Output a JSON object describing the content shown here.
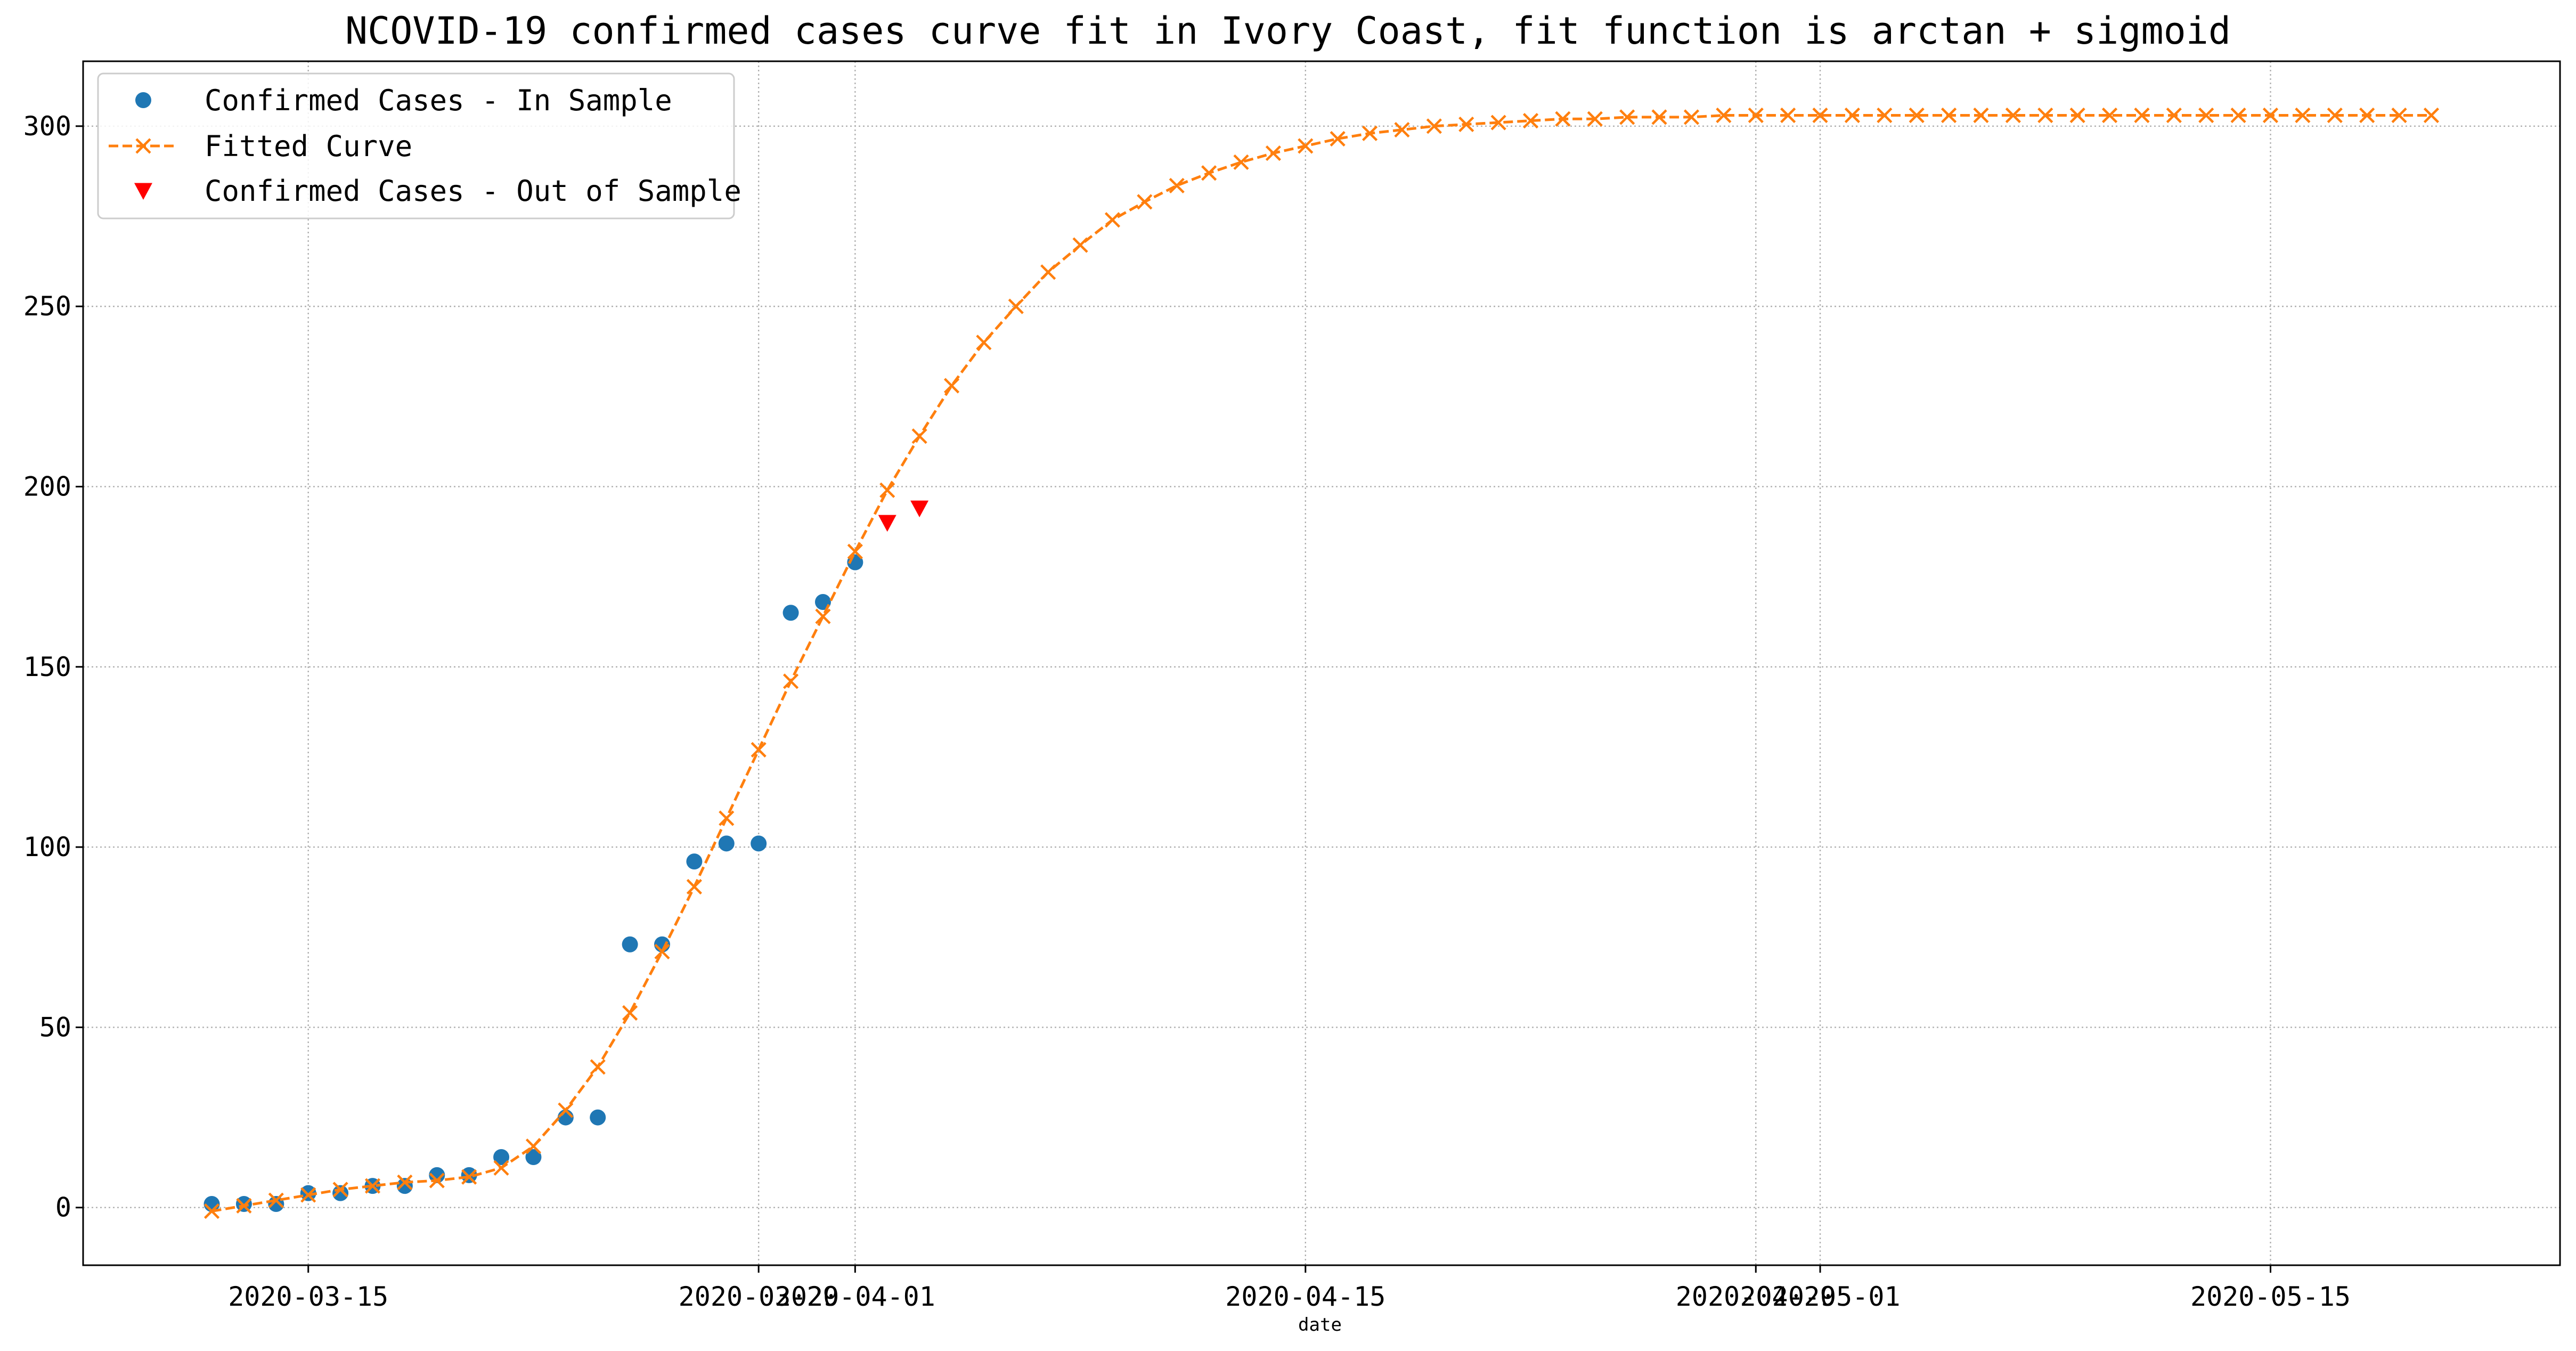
{
  "chart_data": {
    "type": "line",
    "title": "NCOVID-19 confirmed cases curve fit in Ivory Coast, fit function is arctan + sigmoid",
    "xlabel": "date",
    "ylabel": "",
    "x_axis_type": "date",
    "xlim": [
      "2020-03-08",
      "2020-05-24"
    ],
    "ylim": [
      -16,
      318
    ],
    "grid": true,
    "legend_position": "top-left",
    "x_tick_labels": [
      {
        "date": "2020-03-15",
        "label": "2020-03-15"
      },
      {
        "date": "2020-03-29",
        "label": "2020-03-29"
      },
      {
        "date": "2020-04-01",
        "label": "2020-04-01"
      },
      {
        "date": "2020-04-15",
        "label": "2020-04-15"
      },
      {
        "date": "2020-04-29",
        "label": "2020-04-29"
      },
      {
        "date": "2020-05-01",
        "label": "2020-05-01"
      },
      {
        "date": "2020-05-15",
        "label": "2020-05-15"
      }
    ],
    "y_ticks": [
      0,
      50,
      100,
      150,
      200,
      250,
      300
    ],
    "series": [
      {
        "name": "Confirmed Cases - In Sample",
        "style": "markers",
        "marker": "circle",
        "color": "#1f77b4",
        "points": [
          [
            "2020-03-12",
            1
          ],
          [
            "2020-03-13",
            1
          ],
          [
            "2020-03-14",
            1
          ],
          [
            "2020-03-15",
            4
          ],
          [
            "2020-03-16",
            4
          ],
          [
            "2020-03-17",
            6
          ],
          [
            "2020-03-18",
            6
          ],
          [
            "2020-03-19",
            9
          ],
          [
            "2020-03-20",
            9
          ],
          [
            "2020-03-21",
            14
          ],
          [
            "2020-03-22",
            14
          ],
          [
            "2020-03-23",
            25
          ],
          [
            "2020-03-24",
            25
          ],
          [
            "2020-03-25",
            73
          ],
          [
            "2020-03-26",
            73
          ],
          [
            "2020-03-27",
            96
          ],
          [
            "2020-03-28",
            101
          ],
          [
            "2020-03-29",
            101
          ],
          [
            "2020-03-30",
            165
          ],
          [
            "2020-03-31",
            168
          ],
          [
            "2020-04-01",
            179
          ]
        ]
      },
      {
        "name": "Fitted Curve",
        "style": "dashed-line-x-markers",
        "marker": "x",
        "color": "#ff7f0e",
        "points": [
          [
            "2020-03-12",
            -1
          ],
          [
            "2020-03-13",
            0.5
          ],
          [
            "2020-03-14",
            2
          ],
          [
            "2020-03-15",
            3.5
          ],
          [
            "2020-03-16",
            5
          ],
          [
            "2020-03-17",
            6
          ],
          [
            "2020-03-18",
            7
          ],
          [
            "2020-03-19",
            7.5
          ],
          [
            "2020-03-20",
            8.5
          ],
          [
            "2020-03-21",
            11
          ],
          [
            "2020-03-22",
            17
          ],
          [
            "2020-03-23",
            27
          ],
          [
            "2020-03-24",
            39
          ],
          [
            "2020-03-25",
            54
          ],
          [
            "2020-03-26",
            71
          ],
          [
            "2020-03-27",
            89
          ],
          [
            "2020-03-28",
            108
          ],
          [
            "2020-03-29",
            127
          ],
          [
            "2020-03-30",
            146
          ],
          [
            "2020-03-31",
            164
          ],
          [
            "2020-04-01",
            182
          ],
          [
            "2020-04-02",
            199
          ],
          [
            "2020-04-03",
            214
          ],
          [
            "2020-04-04",
            228
          ],
          [
            "2020-04-05",
            240
          ],
          [
            "2020-04-06",
            250
          ],
          [
            "2020-04-07",
            259.5
          ],
          [
            "2020-04-08",
            267
          ],
          [
            "2020-04-09",
            274
          ],
          [
            "2020-04-10",
            279
          ],
          [
            "2020-04-11",
            283.5
          ],
          [
            "2020-04-12",
            287
          ],
          [
            "2020-04-13",
            290
          ],
          [
            "2020-04-14",
            292.5
          ],
          [
            "2020-04-15",
            294.5
          ],
          [
            "2020-04-16",
            296.5
          ],
          [
            "2020-04-17",
            298
          ],
          [
            "2020-04-18",
            299
          ],
          [
            "2020-04-19",
            300
          ],
          [
            "2020-04-20",
            300.5
          ],
          [
            "2020-04-21",
            301
          ],
          [
            "2020-04-22",
            301.5
          ],
          [
            "2020-04-23",
            302
          ],
          [
            "2020-04-24",
            302
          ],
          [
            "2020-04-25",
            302.5
          ],
          [
            "2020-04-26",
            302.5
          ],
          [
            "2020-04-27",
            302.5
          ],
          [
            "2020-04-28",
            303
          ],
          [
            "2020-04-29",
            303
          ],
          [
            "2020-04-30",
            303
          ],
          [
            "2020-05-01",
            303
          ],
          [
            "2020-05-02",
            303
          ],
          [
            "2020-05-03",
            303
          ],
          [
            "2020-05-04",
            303
          ],
          [
            "2020-05-05",
            303
          ],
          [
            "2020-05-06",
            303
          ],
          [
            "2020-05-07",
            303
          ],
          [
            "2020-05-08",
            303
          ],
          [
            "2020-05-09",
            303
          ],
          [
            "2020-05-10",
            303
          ],
          [
            "2020-05-11",
            303
          ],
          [
            "2020-05-12",
            303
          ],
          [
            "2020-05-13",
            303
          ],
          [
            "2020-05-14",
            303
          ],
          [
            "2020-05-15",
            303
          ],
          [
            "2020-05-16",
            303
          ],
          [
            "2020-05-17",
            303
          ],
          [
            "2020-05-18",
            303
          ],
          [
            "2020-05-19",
            303
          ],
          [
            "2020-05-20",
            303
          ]
        ]
      },
      {
        "name": "Confirmed Cases - Out of Sample",
        "style": "markers",
        "marker": "triangle-down",
        "color": "#ff0000",
        "points": [
          [
            "2020-04-02",
            190
          ],
          [
            "2020-04-03",
            194
          ]
        ]
      }
    ]
  }
}
